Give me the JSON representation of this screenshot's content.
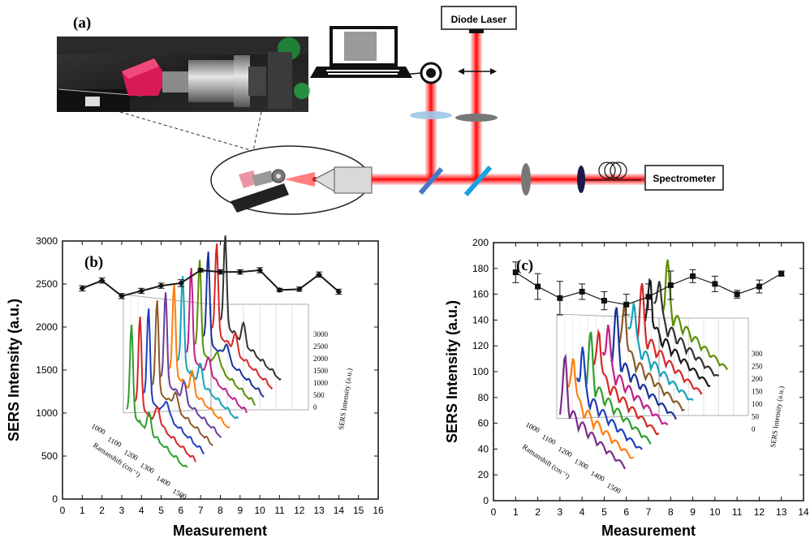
{
  "panel_a": {
    "label": "(a)",
    "diode_laser": "Diode Laser",
    "spectrometer": "Spectrometer"
  },
  "chart_data": [
    {
      "type": "line",
      "panel_label": "(b)",
      "xlabel": "Measurement",
      "ylabel": "SERS Intensity (a.u.)",
      "xlim": [
        0,
        16
      ],
      "ylim": [
        0,
        3000
      ],
      "xticks": [
        0,
        1,
        2,
        3,
        4,
        5,
        6,
        7,
        8,
        9,
        10,
        11,
        12,
        13,
        14,
        15,
        16
      ],
      "yticks": [
        0,
        500,
        1000,
        1500,
        2000,
        2500,
        3000
      ],
      "series": [
        {
          "x": [
            1,
            2,
            3,
            4,
            5,
            6,
            7,
            8,
            9,
            10,
            11,
            12,
            13,
            14
          ],
          "y": [
            2450,
            2540,
            2360,
            2420,
            2480,
            2510,
            2660,
            2640,
            2640,
            2660,
            2430,
            2440,
            2610,
            2410
          ],
          "err": [
            30,
            30,
            30,
            30,
            30,
            40,
            20,
            25,
            25,
            30,
            20,
            25,
            30,
            30
          ],
          "color": "#1a1a1a"
        }
      ],
      "inset": {
        "type": "waterfall",
        "xlabel": "Ramanshift (cm⁻¹)",
        "zlabel": "SERS Intensity (a.u.)",
        "x_ticks": [
          "1000",
          "1100",
          "1200",
          "1300",
          "1400",
          "1500"
        ],
        "z_ticks": [
          "0",
          "500",
          "1000",
          "1500",
          "2000",
          "2500",
          "3000"
        ],
        "colors": [
          "#2ca02c",
          "#d62728",
          "#1f3fbf",
          "#8b5a2b",
          "#6a3d9a",
          "#ff7f0e",
          "#17a2b8",
          "#c21f8a",
          "#5a8f00",
          "#1a3399",
          "#d62728",
          "#333333"
        ]
      }
    },
    {
      "type": "line",
      "panel_label": "(c)",
      "xlabel": "Measurement",
      "ylabel": "SERS Intensity (a.u.)",
      "xlim": [
        0,
        14
      ],
      "ylim": [
        0,
        200
      ],
      "xticks": [
        0,
        1,
        2,
        3,
        4,
        5,
        6,
        7,
        8,
        9,
        10,
        11,
        12,
        13,
        14
      ],
      "yticks": [
        0,
        20,
        40,
        60,
        80,
        100,
        120,
        140,
        160,
        180,
        200
      ],
      "series": [
        {
          "x": [
            1,
            2,
            3,
            4,
            5,
            6,
            7,
            8,
            9,
            10,
            11,
            12,
            13
          ],
          "y": [
            177,
            166,
            157,
            162,
            155,
            152,
            158,
            167,
            174,
            168,
            160,
            166,
            176
          ],
          "err": [
            8,
            10,
            13,
            6,
            7,
            8,
            10,
            11,
            5,
            6,
            3,
            5,
            2
          ],
          "color": "#1a1a1a"
        }
      ],
      "inset": {
        "type": "waterfall",
        "xlabel": "Ramanshift (cm⁻¹)",
        "zlabel": "SERS Intensity (a.u.)",
        "x_ticks": [
          "1000",
          "1100",
          "1200",
          "1300",
          "1400",
          "1500"
        ],
        "z_ticks": [
          "0",
          "50",
          "100",
          "150",
          "200",
          "250",
          "300"
        ],
        "colors": [
          "#7a2d8a",
          "#ff7f0e",
          "#1f3fbf",
          "#2ca02c",
          "#d62728",
          "#c21f8a",
          "#1a3399",
          "#8b5a2b",
          "#17a2b8",
          "#d62728",
          "#1a1a1a",
          "#333333",
          "#5a8f00"
        ]
      }
    }
  ]
}
